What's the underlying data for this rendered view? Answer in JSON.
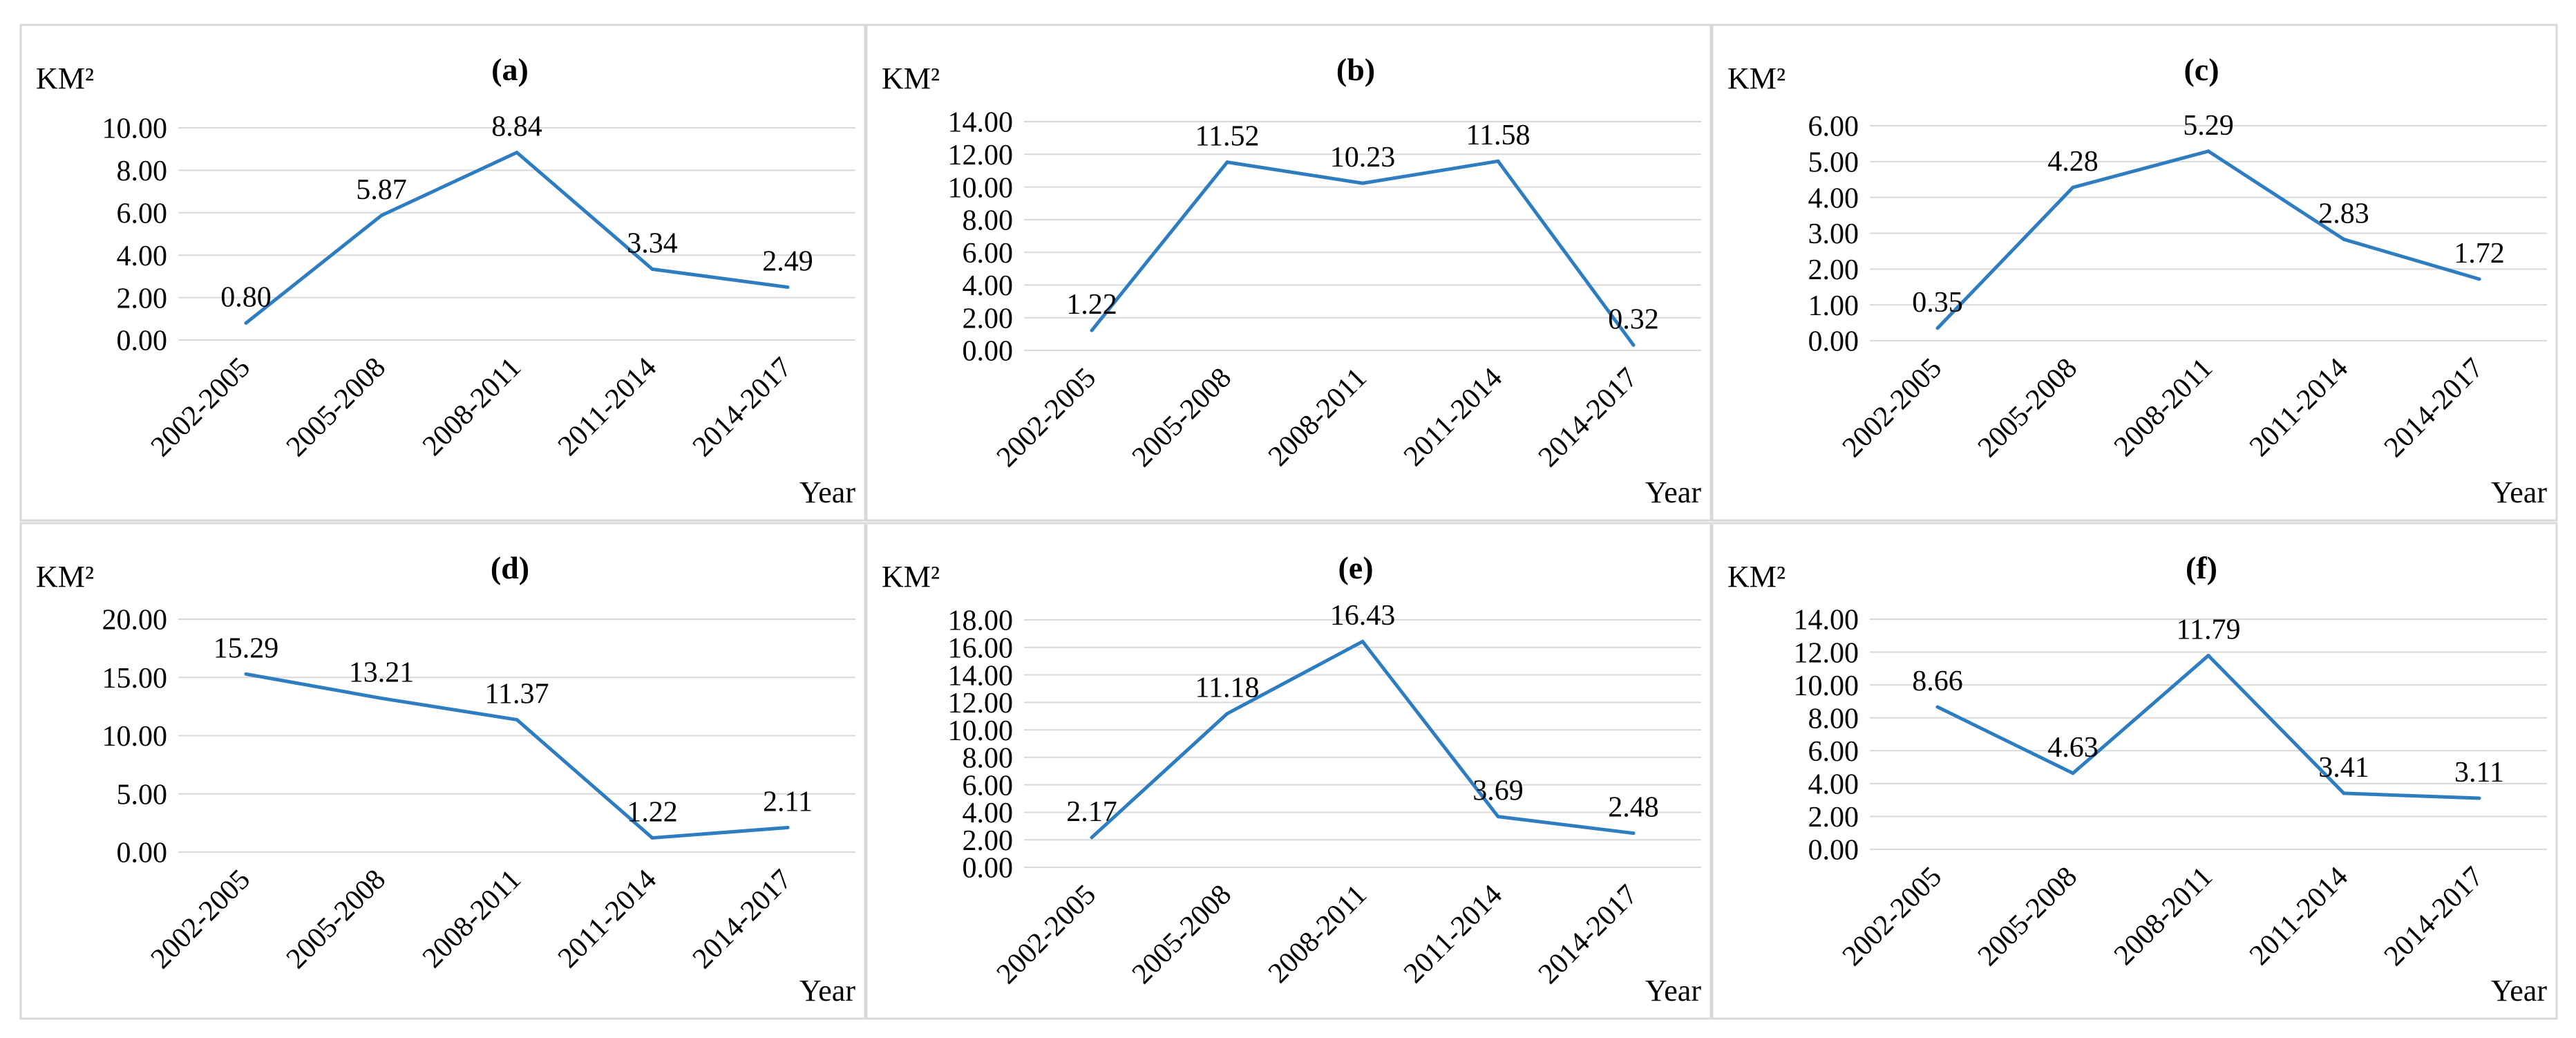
{
  "chart_data": [
    {
      "type": "line",
      "title": "(a)",
      "ylabel": "KM²",
      "xlabel": "Year",
      "categories": [
        "2002-2005",
        "2005-2008",
        "2008-2011",
        "2011-2014",
        "2014-2017"
      ],
      "values": [
        0.8,
        5.87,
        8.84,
        3.34,
        2.49
      ],
      "data_labels": [
        "0.80",
        "5.87",
        "8.84",
        "3.34",
        "2.49"
      ],
      "yticks": [
        "0.00",
        "2.00",
        "4.00",
        "6.00",
        "8.00",
        "10.00"
      ],
      "ylim": [
        0,
        10
      ],
      "grid": true,
      "line_color": "#2e7dc0"
    },
    {
      "type": "line",
      "title": "(b)",
      "ylabel": "KM²",
      "xlabel": "Year",
      "categories": [
        "2002-2005",
        "2005-2008",
        "2008-2011",
        "2011-2014",
        "2014-2017"
      ],
      "values": [
        1.22,
        11.52,
        10.23,
        11.58,
        0.32
      ],
      "data_labels": [
        "1.22",
        "11.52",
        "10.23",
        "11.58",
        "0.32"
      ],
      "yticks": [
        "0.00",
        "2.00",
        "4.00",
        "6.00",
        "8.00",
        "10.00",
        "12.00",
        "14.00"
      ],
      "ylim": [
        0,
        14
      ],
      "grid": true,
      "line_color": "#2e7dc0"
    },
    {
      "type": "line",
      "title": "(c)",
      "ylabel": "KM²",
      "xlabel": "Year",
      "categories": [
        "2002-2005",
        "2005-2008",
        "2008-2011",
        "2011-2014",
        "2014-2017"
      ],
      "values": [
        0.35,
        4.28,
        5.29,
        2.83,
        1.72
      ],
      "data_labels": [
        "0.35",
        "4.28",
        "5.29",
        "2.83",
        "1.72"
      ],
      "yticks": [
        "0.00",
        "1.00",
        "2.00",
        "3.00",
        "4.00",
        "5.00",
        "6.00"
      ],
      "ylim": [
        0,
        6
      ],
      "grid": true,
      "line_color": "#2e7dc0"
    },
    {
      "type": "line",
      "title": "(d)",
      "ylabel": "KM²",
      "xlabel": "Year",
      "categories": [
        "2002-2005",
        "2005-2008",
        "2008-2011",
        "2011-2014",
        "2014-2017"
      ],
      "values": [
        15.29,
        13.21,
        11.37,
        1.22,
        2.11
      ],
      "data_labels": [
        "15.29",
        "13.21",
        "11.37",
        "1.22",
        "2.11"
      ],
      "yticks": [
        "0.00",
        "5.00",
        "10.00",
        "15.00",
        "20.00"
      ],
      "ylim": [
        0,
        20
      ],
      "grid": true,
      "line_color": "#2e7dc0"
    },
    {
      "type": "line",
      "title": "(e)",
      "ylabel": "KM²",
      "xlabel": "Year",
      "categories": [
        "2002-2005",
        "2005-2008",
        "2008-2011",
        "2011-2014",
        "2014-2017"
      ],
      "values": [
        2.17,
        11.18,
        16.43,
        3.69,
        2.48
      ],
      "data_labels": [
        "2.17",
        "11.18",
        "16.43",
        "3.69",
        "2.48"
      ],
      "yticks": [
        "0.00",
        "2.00",
        "4.00",
        "6.00",
        "8.00",
        "10.00",
        "12.00",
        "14.00",
        "16.00",
        "18.00"
      ],
      "ylim": [
        0,
        18
      ],
      "grid": true,
      "line_color": "#2e7dc0"
    },
    {
      "type": "line",
      "title": "(f)",
      "ylabel": "KM²",
      "xlabel": "Year",
      "categories": [
        "2002-2005",
        "2005-2008",
        "2008-2011",
        "2011-2014",
        "2014-2017"
      ],
      "values": [
        8.66,
        4.63,
        11.79,
        3.41,
        3.11
      ],
      "data_labels": [
        "8.66",
        "4.63",
        "11.79",
        "3.41",
        "3.11"
      ],
      "yticks": [
        "0.00",
        "2.00",
        "4.00",
        "6.00",
        "8.00",
        "10.00",
        "12.00",
        "14.00"
      ],
      "ylim": [
        0,
        14
      ],
      "grid": true,
      "line_color": "#2e7dc0"
    }
  ]
}
